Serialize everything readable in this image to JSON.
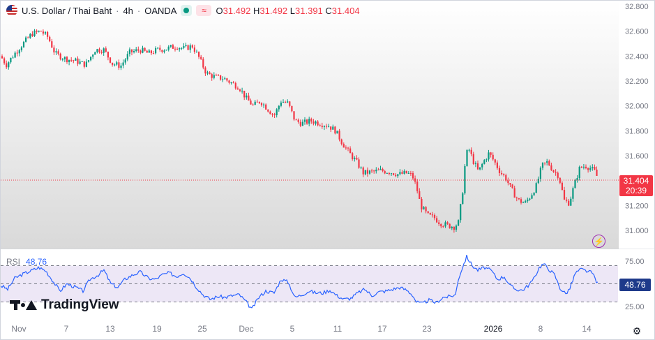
{
  "header": {
    "symbol": "U.S. Dollar / Thai Baht",
    "interval": "4h",
    "source": "OANDA",
    "sep": "·",
    "open_label": "O",
    "open": "31.492",
    "high_label": "H",
    "high": "31.492",
    "low_label": "L",
    "low": "31.391",
    "close_label": "C",
    "close": "31.404",
    "wave_icon_text": "≈"
  },
  "price_tag": {
    "price": "31.404",
    "countdown": "20:39"
  },
  "rsi_panel": {
    "label": "RSI",
    "value": "48.76",
    "tag": "48.76"
  },
  "brand": {
    "name": "TradingView"
  },
  "colors": {
    "up": "#089981",
    "down": "#f23645",
    "rsi_line": "#2962ff",
    "rsi_band": "#ede7f6",
    "axis_text": "#787b86"
  },
  "icons": {
    "flag": "us-thai-flag-icon",
    "bolt": "lightning-icon",
    "settings": "gear-icon"
  },
  "chart_data": [
    {
      "type": "candlestick",
      "title": "U.S. Dollar / Thai Baht · 4h · OANDA",
      "ylim": [
        30.9,
        32.8
      ],
      "y_ticks": [
        32.8,
        32.6,
        32.4,
        32.2,
        32.0,
        31.8,
        31.6,
        31.4,
        31.2,
        31.0
      ],
      "y_tick_labels": [
        "32.800",
        "32.600",
        "32.400",
        "32.200",
        "32.000",
        "31.800",
        "31.600",
        "31.400",
        "31.200",
        "31.000"
      ],
      "x_tick_labels": [
        "Nov",
        "7",
        "13",
        "19",
        "25",
        "Dec",
        "5",
        "11",
        "17",
        "23",
        "2026",
        "8",
        "14"
      ],
      "last_price": 31.404,
      "close_path": [
        [
          0,
          32.4
        ],
        [
          8,
          32.33
        ],
        [
          20,
          32.42
        ],
        [
          32,
          32.5
        ],
        [
          45,
          32.58
        ],
        [
          58,
          32.6
        ],
        [
          68,
          32.55
        ],
        [
          78,
          32.42
        ],
        [
          92,
          32.38
        ],
        [
          108,
          32.36
        ],
        [
          122,
          32.33
        ],
        [
          135,
          32.45
        ],
        [
          148,
          32.45
        ],
        [
          160,
          32.34
        ],
        [
          172,
          32.32
        ],
        [
          185,
          32.43
        ],
        [
          200,
          32.45
        ],
        [
          212,
          32.42
        ],
        [
          225,
          32.45
        ],
        [
          238,
          32.46
        ],
        [
          252,
          32.48
        ],
        [
          262,
          32.46
        ],
        [
          275,
          32.48
        ],
        [
          285,
          32.38
        ],
        [
          295,
          32.26
        ],
        [
          308,
          32.23
        ],
        [
          320,
          32.22
        ],
        [
          332,
          32.18
        ],
        [
          342,
          32.15
        ],
        [
          352,
          32.06
        ],
        [
          362,
          32.0
        ],
        [
          372,
          32.04
        ],
        [
          382,
          31.98
        ],
        [
          392,
          31.92
        ],
        [
          402,
          32.04
        ],
        [
          412,
          32.02
        ],
        [
          422,
          31.88
        ],
        [
          432,
          31.86
        ],
        [
          445,
          31.88
        ],
        [
          458,
          31.86
        ],
        [
          470,
          31.84
        ],
        [
          480,
          31.8
        ],
        [
          490,
          31.7
        ],
        [
          500,
          31.62
        ],
        [
          510,
          31.55
        ],
        [
          520,
          31.46
        ],
        [
          532,
          31.47
        ],
        [
          545,
          31.48
        ],
        [
          558,
          31.47
        ],
        [
          570,
          31.45
        ],
        [
          582,
          31.46
        ],
        [
          590,
          31.44
        ],
        [
          596,
          31.35
        ],
        [
          602,
          31.2
        ],
        [
          612,
          31.12
        ],
        [
          622,
          31.1
        ],
        [
          630,
          31.06
        ],
        [
          640,
          31.04
        ],
        [
          650,
          31.03
        ],
        [
          656,
          31.06
        ],
        [
          662,
          31.3
        ],
        [
          666,
          31.55
        ],
        [
          670,
          31.67
        ],
        [
          678,
          31.55
        ],
        [
          685,
          31.47
        ],
        [
          692,
          31.55
        ],
        [
          700,
          31.62
        ],
        [
          708,
          31.55
        ],
        [
          716,
          31.47
        ],
        [
          724,
          31.42
        ],
        [
          732,
          31.33
        ],
        [
          742,
          31.24
        ],
        [
          752,
          31.22
        ],
        [
          760,
          31.28
        ],
        [
          768,
          31.36
        ],
        [
          776,
          31.52
        ],
        [
          784,
          31.55
        ],
        [
          792,
          31.48
        ],
        [
          800,
          31.44
        ],
        [
          808,
          31.24
        ],
        [
          815,
          31.22
        ],
        [
          822,
          31.36
        ],
        [
          830,
          31.5
        ],
        [
          838,
          31.52
        ],
        [
          846,
          31.5
        ],
        [
          852,
          31.47
        ],
        [
          857,
          31.404
        ]
      ]
    },
    {
      "type": "line",
      "title": "RSI",
      "ylim": [
        0,
        100
      ],
      "y_ticks": [
        75,
        25
      ],
      "y_tick_labels": [
        "75.00",
        "25.00"
      ],
      "bands": [
        30,
        50,
        70
      ],
      "last_value": 48.76,
      "path": [
        [
          0,
          48
        ],
        [
          10,
          44
        ],
        [
          20,
          56
        ],
        [
          30,
          60
        ],
        [
          42,
          64
        ],
        [
          55,
          68
        ],
        [
          65,
          64
        ],
        [
          75,
          53
        ],
        [
          85,
          42
        ],
        [
          95,
          50
        ],
        [
          108,
          46
        ],
        [
          118,
          42
        ],
        [
          128,
          55
        ],
        [
          140,
          60
        ],
        [
          148,
          65
        ],
        [
          158,
          50
        ],
        [
          168,
          46
        ],
        [
          178,
          55
        ],
        [
          190,
          60
        ],
        [
          200,
          63
        ],
        [
          212,
          56
        ],
        [
          222,
          55
        ],
        [
          232,
          60
        ],
        [
          242,
          62
        ],
        [
          252,
          58
        ],
        [
          262,
          62
        ],
        [
          272,
          56
        ],
        [
          280,
          47
        ],
        [
          290,
          38
        ],
        [
          300,
          33
        ],
        [
          312,
          36
        ],
        [
          322,
          35
        ],
        [
          332,
          37
        ],
        [
          342,
          38
        ],
        [
          352,
          30
        ],
        [
          360,
          22
        ],
        [
          370,
          35
        ],
        [
          380,
          42
        ],
        [
          392,
          40
        ],
        [
          402,
          55
        ],
        [
          412,
          52
        ],
        [
          422,
          35
        ],
        [
          432,
          38
        ],
        [
          442,
          42
        ],
        [
          452,
          40
        ],
        [
          462,
          40
        ],
        [
          472,
          43
        ],
        [
          482,
          37
        ],
        [
          492,
          33
        ],
        [
          502,
          34
        ],
        [
          512,
          40
        ],
        [
          522,
          44
        ],
        [
          532,
          37
        ],
        [
          542,
          41
        ],
        [
          552,
          42
        ],
        [
          562,
          44
        ],
        [
          572,
          46
        ],
        [
          582,
          43
        ],
        [
          590,
          38
        ],
        [
          596,
          30
        ],
        [
          604,
          28
        ],
        [
          614,
          32
        ],
        [
          624,
          29
        ],
        [
          634,
          35
        ],
        [
          644,
          36
        ],
        [
          652,
          38
        ],
        [
          656,
          55
        ],
        [
          662,
          68
        ],
        [
          668,
          80
        ],
        [
          676,
          70
        ],
        [
          684,
          65
        ],
        [
          694,
          68
        ],
        [
          704,
          64
        ],
        [
          712,
          55
        ],
        [
          722,
          58
        ],
        [
          730,
          48
        ],
        [
          738,
          44
        ],
        [
          748,
          43
        ],
        [
          756,
          48
        ],
        [
          764,
          55
        ],
        [
          772,
          68
        ],
        [
          778,
          72
        ],
        [
          786,
          66
        ],
        [
          794,
          60
        ],
        [
          802,
          45
        ],
        [
          810,
          39
        ],
        [
          816,
          45
        ],
        [
          824,
          62
        ],
        [
          832,
          66
        ],
        [
          840,
          64
        ],
        [
          848,
          62
        ],
        [
          857,
          48.76
        ]
      ]
    }
  ]
}
